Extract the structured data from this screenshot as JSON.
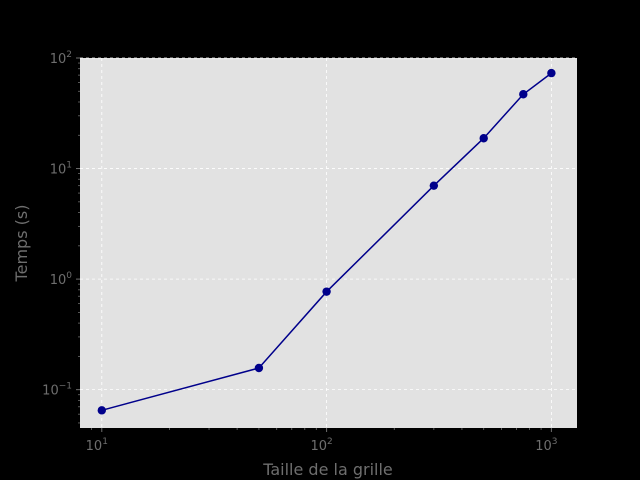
{
  "chart_data": {
    "type": "line",
    "title": "",
    "xlabel": "Taille de la grille",
    "ylabel": "Temps (s)",
    "xscale": "log",
    "yscale": "log",
    "xlim": [
      8,
      1300
    ],
    "ylim": [
      0.045,
      100
    ],
    "grid": true,
    "legend": "none",
    "x_ticks": [
      {
        "value": 10,
        "base": "10",
        "exp": "1"
      },
      {
        "value": 100,
        "base": "10",
        "exp": "2"
      },
      {
        "value": 1000,
        "base": "10",
        "exp": "3"
      }
    ],
    "y_ticks": [
      {
        "value": 0.1,
        "base": "10",
        "exp": "−1"
      },
      {
        "value": 1,
        "base": "10",
        "exp": "0"
      },
      {
        "value": 10,
        "base": "10",
        "exp": "1"
      },
      {
        "value": 100,
        "base": "10",
        "exp": "2"
      }
    ],
    "series": [
      {
        "x": [
          10,
          50,
          100,
          300,
          500,
          750,
          1000
        ],
        "y": [
          0.065,
          0.157,
          0.77,
          7.0,
          18.8,
          47.0,
          73.0
        ],
        "color": "#00008b",
        "marker": "circle"
      }
    ],
    "colors": {
      "background": "#000000",
      "plot_area": "#e2e2e2",
      "grid": "#ffffff",
      "text": "#6e6e6e",
      "line": "#00008b"
    }
  }
}
